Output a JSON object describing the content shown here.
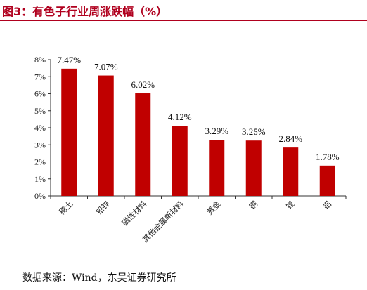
{
  "figure": {
    "title": "图3：有色子行业周涨跌幅（%）",
    "source": "数据来源：Wind，东吴证券研究所",
    "bar_color": "#c00000",
    "title_color": "#b0001e"
  },
  "chart_data": {
    "type": "bar",
    "categories": [
      "稀土",
      "铅锌",
      "磁性材料",
      "其他金属新材料",
      "黄金",
      "铜",
      "锂",
      "铝"
    ],
    "values": [
      7.47,
      7.07,
      6.02,
      4.12,
      3.29,
      3.25,
      2.84,
      1.78
    ],
    "data_labels": [
      "7.47%",
      "7.07%",
      "6.02%",
      "4.12%",
      "3.29%",
      "3.25%",
      "2.84%",
      "1.78%"
    ],
    "yticks": [
      "0%",
      "1%",
      "2%",
      "3%",
      "4%",
      "5%",
      "6%",
      "7%",
      "8%"
    ],
    "ylim": [
      0,
      8
    ],
    "grid": false,
    "legend": "none"
  }
}
